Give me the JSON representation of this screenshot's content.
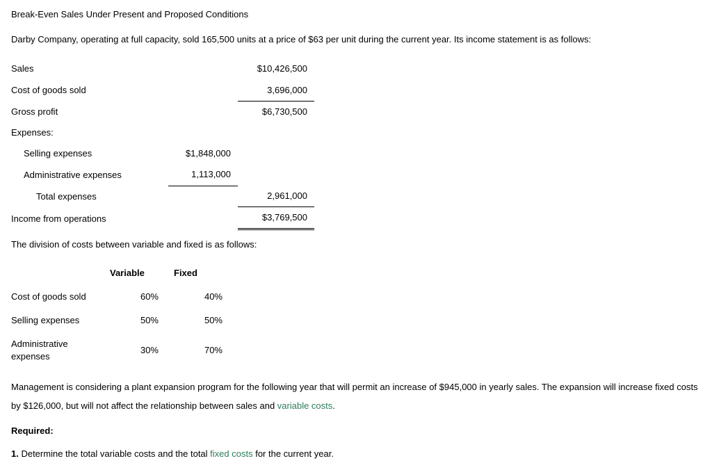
{
  "title": "Break-Even Sales Under Present and Proposed Conditions",
  "intro": "Darby Company, operating at full capacity, sold 165,500 units at a price of $63 per unit during the current year. Its income statement is as follows:",
  "income": {
    "sales_label": "Sales",
    "sales_value": "$10,426,500",
    "cogs_label": "Cost of goods sold",
    "cogs_value": "3,696,000",
    "gross_profit_label": "Gross profit",
    "gross_profit_value": "$6,730,500",
    "expenses_header": "Expenses:",
    "selling_label": "Selling expenses",
    "selling_value": "$1,848,000",
    "admin_label": "Administrative expenses",
    "admin_value": "1,113,000",
    "total_exp_label": "Total expenses",
    "total_exp_value": "2,961,000",
    "income_ops_label": "Income from operations",
    "income_ops_value": "$3,769,500"
  },
  "division_intro": "The division of costs between variable and fixed is as follows:",
  "costdiv": {
    "col_variable": "Variable",
    "col_fixed": "Fixed",
    "rows": [
      {
        "label": "Cost of goods sold",
        "variable": "60%",
        "fixed": "40%"
      },
      {
        "label": "Selling expenses",
        "variable": "50%",
        "fixed": "50%"
      },
      {
        "label": "Administrative expenses",
        "variable": "30%",
        "fixed": "70%"
      }
    ]
  },
  "mgmt_para_pre": "Management is considering a plant expansion program for the following year that will permit an increase of $945,000 in yearly sales. The expansion will increase fixed costs by $126,000, but will not affect the relationship between sales and ",
  "mgmt_link": "variable costs",
  "mgmt_para_post": ".",
  "required_label": "Required:",
  "q1_num": "1.",
  "q1_pre": "  Determine the total variable costs and the total ",
  "q1_link": "fixed costs",
  "q1_post": " for the current year."
}
